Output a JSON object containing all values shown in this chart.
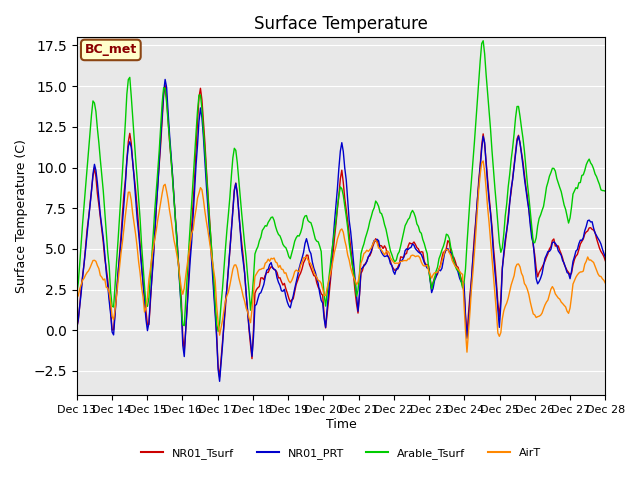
{
  "title": "Surface Temperature",
  "ylabel": "Surface Temperature (C)",
  "xlabel": "Time",
  "ylim": [
    -4,
    18
  ],
  "bg_color": "#e8e8e8",
  "annotation_text": "BC_met",
  "annotation_facecolor": "#ffffcc",
  "annotation_edgecolor": "#8B4513",
  "annotation_textcolor": "#8B0000",
  "tick_labels": [
    "Dec 13",
    "Dec 14",
    "Dec 15",
    "Dec 16",
    "Dec 17",
    "Dec 18",
    "Dec 19",
    "Dec 20",
    "Dec 21",
    "Dec 22",
    "Dec 23",
    "Dec 24",
    "Dec 25",
    "Dec 26",
    "Dec 27",
    "Dec 28"
  ],
  "colors": [
    "#cc0000",
    "#0000cc",
    "#00cc00",
    "#ff8800"
  ],
  "legend_labels": [
    "NR01_Tsurf",
    "NR01_PRT",
    "Arable_Tsurf",
    "AirT"
  ],
  "nr01_day_peaks": [
    10.0,
    12.2,
    15.0,
    15.0,
    9.0,
    4.0,
    4.5,
    9.5,
    5.5,
    5.5,
    5.2,
    12.0,
    12.0,
    5.5,
    6.5
  ],
  "nr01_day_troughs": [
    0.1,
    -0.5,
    -0.2,
    -2.2,
    -3.5,
    2.2,
    1.5,
    -0.2,
    3.5,
    3.7,
    2.5,
    -0.8,
    3.5,
    3.0,
    4.0
  ],
  "prt_day_peaks": [
    10.0,
    11.8,
    15.2,
    13.8,
    9.0,
    4.0,
    5.5,
    11.5,
    5.5,
    5.3,
    5.0,
    12.0,
    12.0,
    5.5,
    6.8
  ],
  "prt_day_troughs": [
    0.0,
    -0.8,
    -0.3,
    -2.4,
    -3.6,
    1.5,
    1.3,
    -0.3,
    3.5,
    3.6,
    2.2,
    -1.2,
    3.3,
    2.8,
    4.2
  ],
  "arable_day_peaks": [
    14.5,
    15.7,
    15.3,
    15.0,
    11.5,
    7.0,
    7.0,
    9.0,
    8.0,
    7.5,
    6.0,
    18.0,
    14.0,
    10.0,
    10.5
  ],
  "arable_day_troughs": [
    2.0,
    0.0,
    0.5,
    -1.0,
    -0.8,
    4.5,
    4.2,
    0.5,
    4.2,
    4.0,
    2.0,
    4.0,
    4.0,
    6.0,
    8.0
  ],
  "air_day_peaks": [
    4.3,
    8.5,
    9.0,
    8.8,
    4.2,
    4.5,
    4.3,
    6.3,
    5.5,
    4.5,
    4.8,
    11.0,
    4.0,
    2.5,
    4.5
  ],
  "air_day_troughs": [
    2.0,
    -0.2,
    2.5,
    2.0,
    -0.5,
    3.2,
    2.8,
    1.8,
    4.0,
    4.0,
    3.0,
    -2.3,
    0.5,
    0.5,
    2.5
  ],
  "pts_per_day": 24,
  "n_days": 15,
  "noise_seed": 42
}
